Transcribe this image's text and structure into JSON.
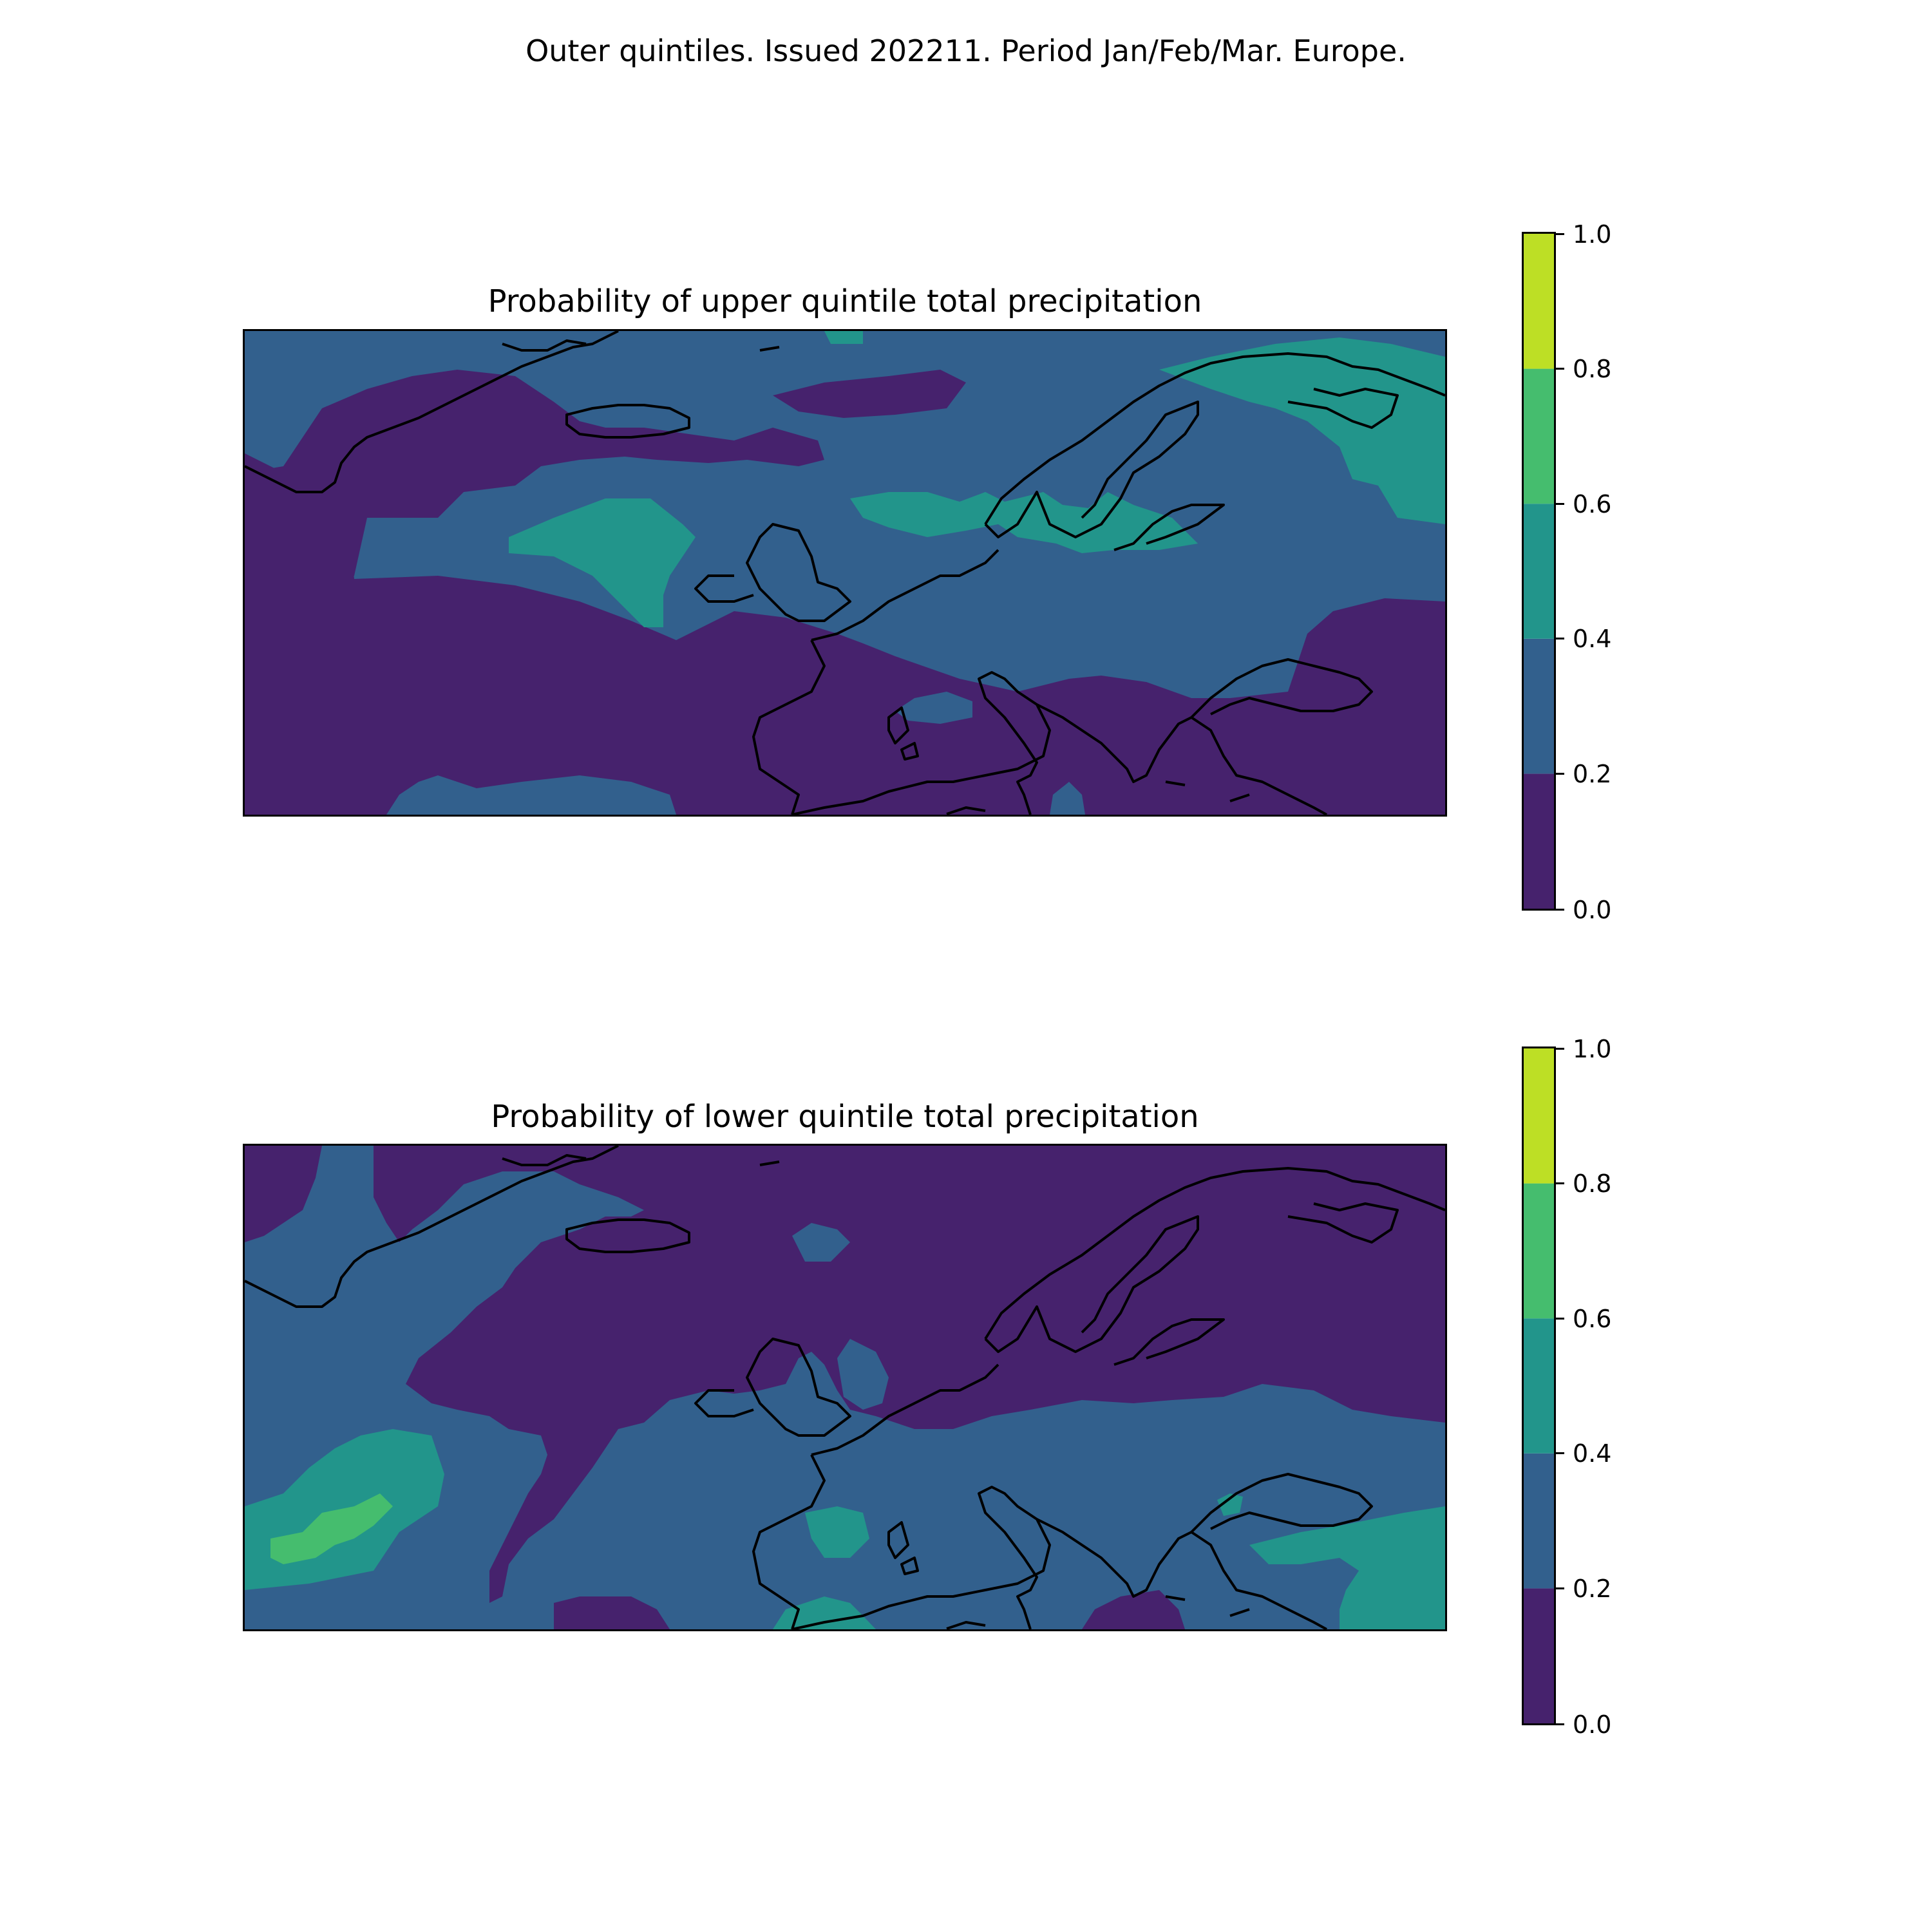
{
  "suptitle": "Outer quintiles. Issued 202211. Period Jan/Feb/Mar. Europe.",
  "colorbar": {
    "ticks": [
      "0.0",
      "0.2",
      "0.4",
      "0.6",
      "0.8",
      "1.0"
    ],
    "levels": [
      0.0,
      0.2,
      0.4,
      0.6,
      0.8,
      1.0
    ],
    "colors": [
      "#46226d",
      "#32608d",
      "#22958b",
      "#45bd6e",
      "#bddf25"
    ]
  },
  "chart_data": [
    {
      "type": "heatmap",
      "title": "Probability of upper quintile total precipitation",
      "region": "Europe",
      "value_range": [
        0,
        1
      ],
      "color_classes": [
        "0.0–0.2",
        "0.2–0.4",
        "0.4–0.6",
        "0.6–0.8",
        "0.8–1.0"
      ],
      "dominant_class": "0.0–0.2",
      "notable_areas": [
        "0.4–0.6 over North Atlantic, North Sea and north-eastern Europe",
        "0.6–0.8 not reached"
      ]
    },
    {
      "type": "heatmap",
      "title": "Probability of lower quintile total precipitation",
      "region": "Europe",
      "value_range": [
        0,
        1
      ],
      "color_classes": [
        "0.0–0.2",
        "0.2–0.4",
        "0.4–0.6",
        "0.6–0.8",
        "0.8–1.0"
      ],
      "dominant_class": "0.0–0.2",
      "notable_areas": [
        "0.6–0.8 off Iberia in the Atlantic",
        "0.4–0.6 over Turkey and near Gibraltar"
      ]
    }
  ]
}
